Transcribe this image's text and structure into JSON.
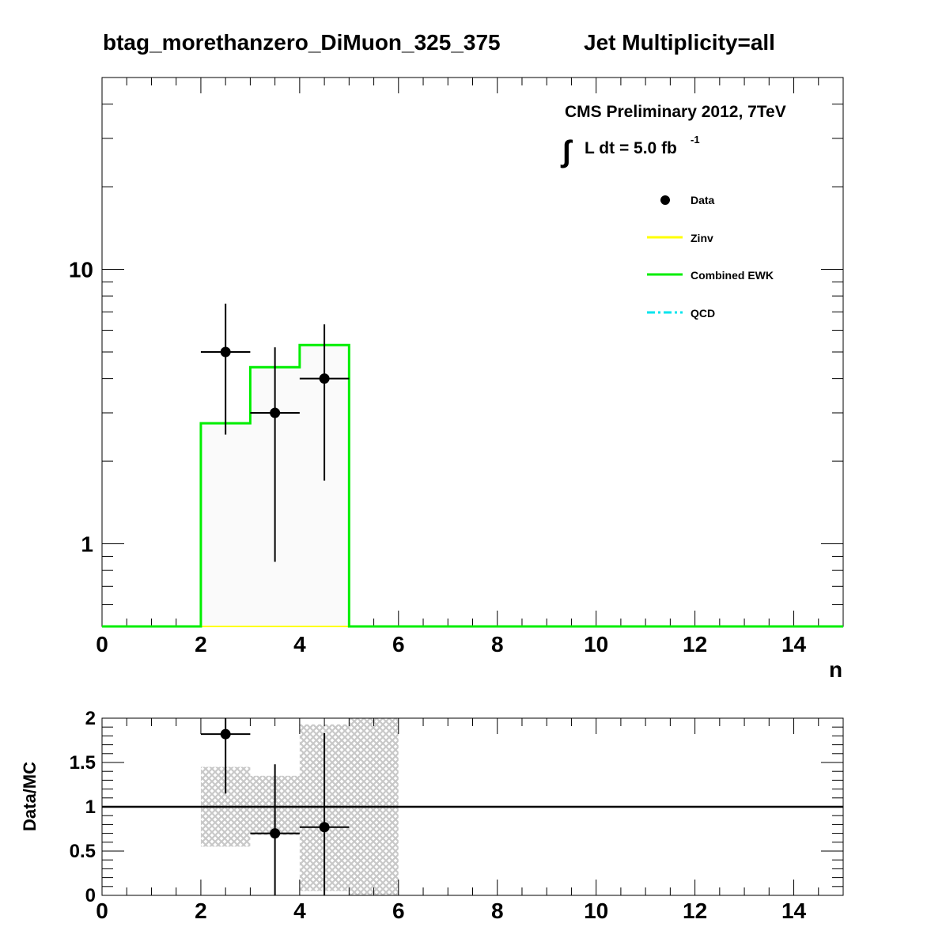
{
  "colors": {
    "zinv": "#ffff00",
    "ewk": "#00ee00",
    "qcd": "#00e5ee",
    "data": "#000000",
    "band": "#c8c8c8",
    "stack_fill": "#fafafa"
  },
  "chart_data": [
    {
      "type": "histogram",
      "title_left": "btag_morethanzero_DiMuon_325_375",
      "title_right": "Jet Multiplicity=all",
      "xlabel": "n",
      "xlim": [
        0,
        15
      ],
      "ylim_log": [
        0.5,
        50
      ],
      "ylog": true,
      "x_tick_labels": [
        "0",
        "2",
        "4",
        "6",
        "8",
        "10",
        "12",
        "14"
      ],
      "y_tick_labels": [
        "1",
        "10"
      ],
      "y_tick_values": [
        1,
        10
      ],
      "cms_label": "CMS Preliminary 2012, 7TeV",
      "lumi_integral": "∫",
      "lumi_label": "L dt = 5.0 fb",
      "lumi_exp": "-1",
      "legend": [
        {
          "name": "Data",
          "style": "marker"
        },
        {
          "name": "Zinv",
          "style": "line-yellow"
        },
        {
          "name": "Combined EWK",
          "style": "line-green"
        },
        {
          "name": "QCD",
          "style": "line-cyan-dashdot"
        }
      ],
      "bin_edges": [
        0,
        1,
        2,
        3,
        4,
        5,
        6,
        7,
        8,
        9,
        10,
        11,
        12,
        13,
        14,
        15
      ],
      "combined_ewk": [
        0,
        0,
        2.75,
        4.4,
        5.3,
        0,
        0,
        0,
        0,
        0,
        0,
        0,
        0,
        0,
        0
      ],
      "data_points": [
        {
          "x": 2.5,
          "y": 5.0,
          "ylo": 2.5,
          "yhi": 7.5,
          "xerr": 0.5
        },
        {
          "x": 3.5,
          "y": 3.0,
          "ylo": 0.86,
          "yhi": 5.2,
          "xerr": 0.5
        },
        {
          "x": 4.5,
          "y": 4.0,
          "ylo": 1.7,
          "yhi": 6.3,
          "xerr": 0.5
        }
      ]
    },
    {
      "type": "ratio",
      "ylabel": "Data/MC",
      "xlim": [
        0,
        15
      ],
      "ylim": [
        0,
        2
      ],
      "x_tick_labels": [
        "0",
        "2",
        "4",
        "6",
        "8",
        "10",
        "12",
        "14"
      ],
      "y_tick_labels": [
        "0",
        "0.5",
        "1",
        "1.5",
        "2"
      ],
      "y_tick_values": [
        0,
        0.5,
        1,
        1.5,
        2
      ],
      "reference_line": 1,
      "uncertainty_band": [
        {
          "x0": 2,
          "x1": 3,
          "lo": 0.55,
          "hi": 1.45
        },
        {
          "x0": 3,
          "x1": 4,
          "lo": 0.68,
          "hi": 1.35
        },
        {
          "x0": 4,
          "x1": 5,
          "lo": 0.05,
          "hi": 1.93
        },
        {
          "x0": 5,
          "x1": 6,
          "lo": 0.0,
          "hi": 2.0
        }
      ],
      "ratio_points": [
        {
          "x": 2.5,
          "y": 1.82,
          "ylo": 1.15,
          "yhi": 2.0,
          "xerr": 0.5
        },
        {
          "x": 3.5,
          "y": 0.7,
          "ylo": 0.0,
          "yhi": 1.48,
          "xerr": 0.5
        },
        {
          "x": 4.5,
          "y": 0.77,
          "ylo": 0.0,
          "yhi": 1.83,
          "xerr": 0.5
        }
      ]
    }
  ]
}
